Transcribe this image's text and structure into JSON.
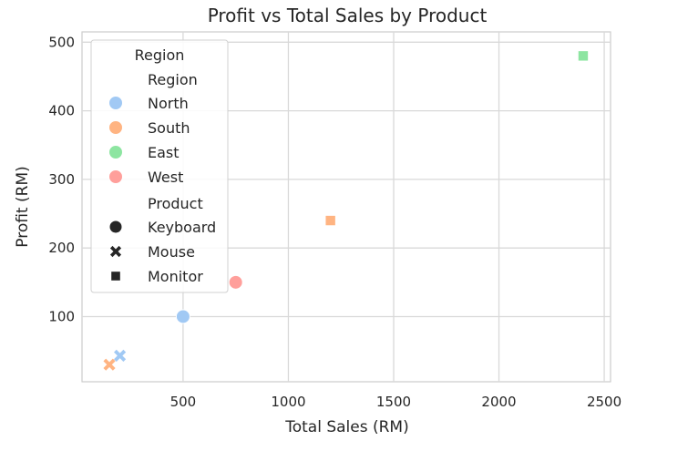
{
  "chart_data": {
    "type": "scatter",
    "title": "Profit vs Total Sales by Product",
    "xlabel": "Total Sales (RM)",
    "ylabel": "Profit (RM)",
    "xlim": [
      20,
      2530
    ],
    "ylim": [
      5,
      515
    ],
    "xticks": [
      500,
      1000,
      1500,
      2000,
      2500
    ],
    "yticks": [
      100,
      200,
      300,
      400,
      500
    ],
    "grid": true,
    "legend_placement": "top-left",
    "legend": {
      "title": "Region",
      "hue_header": "Region",
      "regions": [
        {
          "name": "North",
          "color": "#a1c9f4"
        },
        {
          "name": "South",
          "color": "#ffb482"
        },
        {
          "name": "East",
          "color": "#8de5a1"
        },
        {
          "name": "West",
          "color": "#ff9f9b"
        }
      ],
      "style_header": "Product",
      "products": [
        {
          "name": "Keyboard",
          "marker": "circle"
        },
        {
          "name": "Mouse",
          "marker": "x"
        },
        {
          "name": "Monitor",
          "marker": "square"
        }
      ]
    },
    "points": [
      {
        "x": 500,
        "y": 100,
        "region": "North",
        "product": "Keyboard"
      },
      {
        "x": 200,
        "y": 43,
        "region": "North",
        "product": "Mouse"
      },
      {
        "x": 150,
        "y": 30,
        "region": "South",
        "product": "Mouse"
      },
      {
        "x": 1200,
        "y": 240,
        "region": "South",
        "product": "Monitor"
      },
      {
        "x": 2400,
        "y": 480,
        "region": "East",
        "product": "Monitor"
      },
      {
        "x": 750,
        "y": 150,
        "region": "West",
        "product": "Keyboard"
      }
    ]
  }
}
